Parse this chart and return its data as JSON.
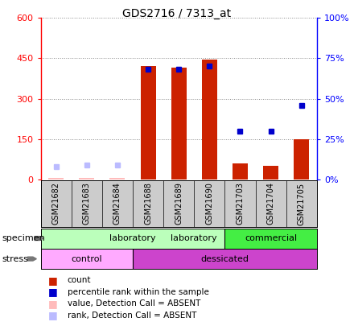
{
  "title": "GDS2716 / 7313_at",
  "samples": [
    "GSM21682",
    "GSM21683",
    "GSM21684",
    "GSM21688",
    "GSM21689",
    "GSM21690",
    "GSM21703",
    "GSM21704",
    "GSM21705"
  ],
  "count_values": [
    5,
    5,
    5,
    420,
    415,
    445,
    60,
    50,
    148
  ],
  "percentile_values": [
    8,
    9,
    9,
    68,
    68,
    70,
    30,
    30,
    46
  ],
  "absent_flags": [
    true,
    true,
    true,
    false,
    false,
    false,
    false,
    false,
    false
  ],
  "ylim_left": [
    0,
    600
  ],
  "ylim_right": [
    0,
    100
  ],
  "yticks_left": [
    0,
    150,
    300,
    450,
    600
  ],
  "yticks_right": [
    0,
    25,
    50,
    75,
    100
  ],
  "ytick_labels_left": [
    "0",
    "150",
    "300",
    "450",
    "600"
  ],
  "ytick_labels_right": [
    "0%",
    "25%",
    "50%",
    "75%",
    "100%"
  ],
  "bar_color": "#cc2200",
  "dot_color": "#0000cc",
  "absent_bar_color": "#ffbbbb",
  "absent_dot_color": "#bbbbff",
  "grid_color": "#888888",
  "specimen_lab_color": "#bbffbb",
  "specimen_com_color": "#44ee44",
  "stress_ctrl_color": "#ffaaff",
  "stress_des_color": "#cc44cc",
  "bg_color": "#cccccc",
  "lab_boundary": 5.5,
  "ctrl_boundary": 2.5,
  "legend_items": [
    {
      "color": "#cc2200",
      "label": "count"
    },
    {
      "color": "#0000cc",
      "label": "percentile rank within the sample"
    },
    {
      "color": "#ffbbbb",
      "label": "value, Detection Call = ABSENT"
    },
    {
      "color": "#bbbbff",
      "label": "rank, Detection Call = ABSENT"
    }
  ]
}
